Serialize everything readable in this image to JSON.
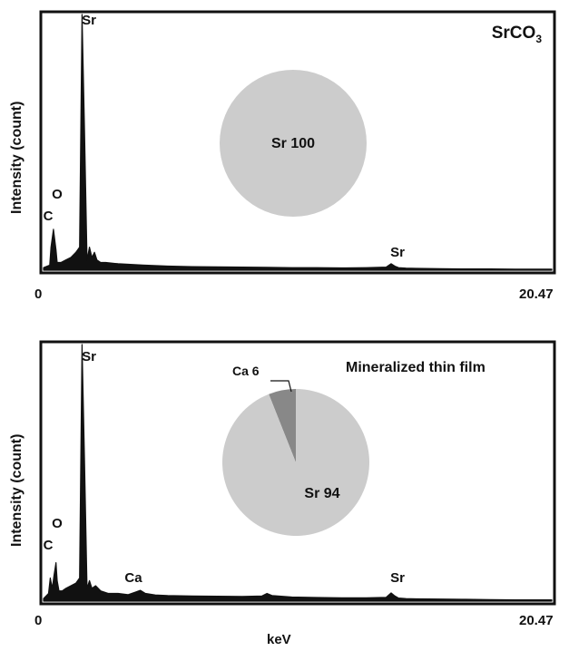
{
  "xaxis_label": "keV",
  "chart_data": [
    {
      "type": "line",
      "title": "SrCO",
      "title_subscript": "3",
      "ylabel": "Intensity (count)",
      "xlabel": "keV",
      "xlim": [
        0,
        20.47
      ],
      "xtick_labels": [
        "0",
        "20.47"
      ],
      "series": [
        {
          "x": [
            0.0,
            0.25,
            0.3,
            0.4,
            0.5,
            0.55,
            0.7,
            0.9,
            1.1,
            1.3,
            1.45,
            1.55,
            1.65,
            1.75,
            1.85,
            1.95,
            2.05,
            2.15,
            2.3,
            2.5,
            3.0,
            4.0,
            5.0,
            6.0,
            7.0,
            8.0,
            9.0,
            10.0,
            11.0,
            12.0,
            13.0,
            13.8,
            14.0,
            14.15,
            14.3,
            14.6,
            15.0,
            16.0,
            17.0,
            18.0,
            19.0,
            20.47
          ],
          "y": [
            1,
            2,
            9,
            16,
            8,
            3,
            3,
            4,
            5,
            7,
            9,
            100,
            55,
            4,
            9,
            5,
            7,
            4,
            3,
            3,
            2.5,
            2,
            1.6,
            1.4,
            1.3,
            1.2,
            1.1,
            1.0,
            1.0,
            0.9,
            1.0,
            1.2,
            2.5,
            1.6,
            1.0,
            0.8,
            0.7,
            0.6,
            0.5,
            0.5,
            0.4,
            0.4
          ]
        }
      ],
      "annotations": [
        {
          "text": "Sr",
          "x": 1.6
        },
        {
          "text": "O",
          "x": 0.55
        },
        {
          "text": "C",
          "x": 0.27
        },
        {
          "text": "Sr",
          "x": 14.1
        }
      ],
      "pie": {
        "slices": [
          {
            "label": "Sr 100",
            "value": 100,
            "color": "#cccccc"
          }
        ]
      }
    },
    {
      "type": "line",
      "title": "Mineralized thin film",
      "ylabel": "Intensity (count)",
      "xlabel": "keV",
      "xlim": [
        0,
        20.47
      ],
      "xtick_labels": [
        "0",
        "20.47"
      ],
      "series": [
        {
          "x": [
            0.0,
            0.2,
            0.27,
            0.35,
            0.42,
            0.5,
            0.55,
            0.62,
            0.75,
            0.9,
            1.1,
            1.3,
            1.45,
            1.55,
            1.65,
            1.75,
            1.85,
            1.95,
            2.1,
            2.3,
            2.6,
            3.0,
            3.4,
            3.7,
            3.9,
            4.1,
            4.5,
            5.0,
            6.0,
            7.0,
            8.0,
            8.8,
            9.0,
            9.2,
            10.0,
            11.0,
            12.0,
            13.0,
            13.8,
            14.0,
            14.15,
            14.3,
            14.6,
            15.0,
            16.0,
            17.0,
            18.0,
            19.0,
            20.47
          ],
          "y": [
            1,
            3,
            9,
            5,
            10,
            15,
            8,
            4,
            4,
            5,
            6,
            7,
            9,
            100,
            55,
            5,
            8,
            5,
            6,
            4,
            3,
            3,
            2.5,
            3.5,
            4.2,
            3.0,
            2.4,
            2.2,
            2.0,
            1.9,
            1.8,
            2.0,
            3.0,
            2.2,
            1.6,
            1.4,
            1.3,
            1.3,
            1.5,
            3.2,
            2.0,
            1.2,
            1.0,
            0.9,
            0.8,
            0.7,
            0.6,
            0.5,
            0.5
          ]
        }
      ],
      "annotations": [
        {
          "text": "Sr",
          "x": 1.6
        },
        {
          "text": "O",
          "x": 0.55
        },
        {
          "text": "C",
          "x": 0.27
        },
        {
          "text": "Ca",
          "x": 3.7
        },
        {
          "text": "Sr",
          "x": 14.1
        }
      ],
      "pie": {
        "slices": [
          {
            "label": "Ca 6",
            "value": 6,
            "color": "#888888"
          },
          {
            "label": "Sr 94",
            "value": 94,
            "color": "#cccccc"
          }
        ]
      }
    }
  ]
}
